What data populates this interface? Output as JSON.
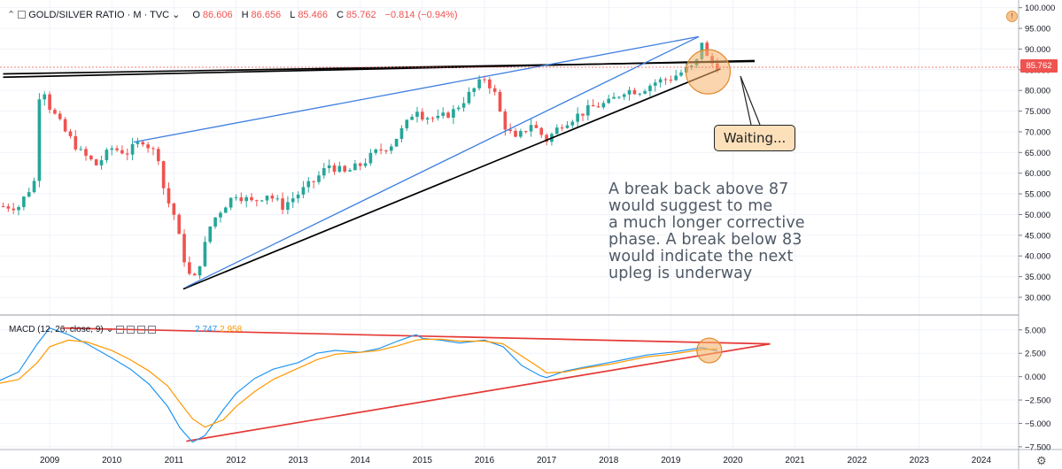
{
  "header": {
    "symbol": "GOLD/SILVER RATIO · M · TVC",
    "dropdown": "⌄",
    "open_label": "O",
    "open": "86.606",
    "high_label": "H",
    "high": "86.656",
    "low_label": "L",
    "low": "85.466",
    "close_label": "C",
    "close": "85.762",
    "change": "−0.814 (−0.94%)"
  },
  "macd_header": {
    "label": "MACD (12, 26, close, 9)",
    "dropdown": "⌄",
    "value_macd": "2.747",
    "value_signal": "2.958"
  },
  "price_tag": "85.762",
  "annotation_note": {
    "lines": [
      "A break back above 87",
      "would suggest to me",
      "a much longer corrective",
      "phase. A break below 83",
      "would indicate the next",
      "upleg is underway"
    ]
  },
  "callout": "Waiting...",
  "info_badge": "!",
  "settings_icon": "gear-icon",
  "colors": {
    "up": "#26a69a",
    "down": "#ef5350",
    "macd": "#2196f3",
    "signal": "#ff9800",
    "trend_blue": "#3d7ee0",
    "trend_black": "#000000",
    "trend_red": "#e53935",
    "highlight": "#f7b26a"
  },
  "chart_data": {
    "type": "line",
    "title": "GOLD/SILVER RATIO · M · TVC",
    "price_axis": {
      "ticks": [
        "100.000",
        "95.000",
        "90.000",
        "85.000",
        "80.000",
        "75.000",
        "70.000",
        "65.000",
        "60.000",
        "55.000",
        "50.000",
        "45.000",
        "40.000",
        "35.000",
        "30.000"
      ],
      "range": [
        27,
        101
      ]
    },
    "macd_axis": {
      "ticks": [
        "5.000",
        "2.500",
        "0.000",
        "−2.500",
        "−5.000",
        "−7.500"
      ],
      "range": [
        -7.7,
        6.4
      ]
    },
    "x_axis": {
      "ticks": [
        "2009",
        "2010",
        "2011",
        "2012",
        "2013",
        "2014",
        "2015",
        "2016",
        "2017",
        "2018",
        "2019",
        "2020",
        "2021",
        "2022",
        "2023",
        "2024"
      ],
      "range": [
        2008.2,
        2024.6
      ]
    },
    "grid": true,
    "legend": "top-left",
    "series": [
      {
        "name": "GOLD/SILVER RATIO",
        "x": [
          2008.25,
          2008.5,
          2008.75,
          2008.85,
          2009.0,
          2009.25,
          2009.5,
          2009.75,
          2010.0,
          2010.25,
          2010.5,
          2010.75,
          2010.85,
          2011.0,
          2011.15,
          2011.3,
          2011.45,
          2011.6,
          2011.8,
          2012.0,
          2012.25,
          2012.5,
          2012.75,
          2013.0,
          2013.25,
          2013.5,
          2013.75,
          2014.0,
          2014.25,
          2014.5,
          2014.75,
          2014.9,
          2015.0,
          2015.25,
          2015.5,
          2015.75,
          2016.0,
          2016.15,
          2016.3,
          2016.5,
          2016.75,
          2017.0,
          2017.25,
          2017.5,
          2017.75,
          2018.0,
          2018.25,
          2018.5,
          2018.75,
          2019.0,
          2019.25,
          2019.4,
          2019.5,
          2019.6,
          2019.75
        ],
        "values": [
          52,
          52,
          58,
          83,
          76,
          70,
          65,
          62,
          66,
          65,
          68,
          64,
          55,
          50,
          40,
          33,
          40,
          48,
          52,
          55,
          53,
          55,
          52,
          55,
          58,
          62,
          60,
          62,
          65,
          67,
          72,
          76,
          74,
          73,
          75,
          79,
          83,
          80,
          72,
          68,
          72,
          68,
          72,
          74,
          76,
          77,
          80,
          80,
          82,
          83,
          85,
          86,
          92,
          87,
          86
        ]
      },
      {
        "name": "MACD",
        "x": [
          2008.2,
          2008.5,
          2008.8,
          2009.0,
          2009.3,
          2009.6,
          2010.0,
          2010.3,
          2010.6,
          2010.9,
          2011.1,
          2011.3,
          2011.5,
          2011.8,
          2012.0,
          2012.3,
          2012.6,
          2013.0,
          2013.3,
          2013.6,
          2014.0,
          2014.3,
          2014.6,
          2014.9,
          2015.0,
          2015.3,
          2015.6,
          2016.0,
          2016.3,
          2016.6,
          2016.9,
          2017.0,
          2017.3,
          2017.6,
          2018.0,
          2018.3,
          2018.6,
          2019.0,
          2019.3,
          2019.5,
          2019.75
        ],
        "values": [
          -0.4,
          0.5,
          3.5,
          5.2,
          4.5,
          3.5,
          2.0,
          0.8,
          -0.8,
          -3.2,
          -5.5,
          -7.0,
          -6.3,
          -3.5,
          -1.8,
          -0.2,
          0.8,
          1.5,
          2.5,
          2.8,
          2.6,
          3.0,
          3.8,
          4.5,
          4.1,
          3.9,
          3.6,
          3.9,
          3.2,
          1.2,
          0.1,
          -0.1,
          0.6,
          1.0,
          1.5,
          1.9,
          2.3,
          2.6,
          2.9,
          3.1,
          2.747
        ]
      },
      {
        "name": "Signal",
        "x": [
          2008.2,
          2008.5,
          2008.8,
          2009.0,
          2009.3,
          2009.6,
          2010.0,
          2010.3,
          2010.6,
          2010.9,
          2011.1,
          2011.3,
          2011.5,
          2011.8,
          2012.0,
          2012.3,
          2012.6,
          2013.0,
          2013.3,
          2013.6,
          2014.0,
          2014.3,
          2014.6,
          2014.9,
          2015.0,
          2015.3,
          2015.6,
          2016.0,
          2016.3,
          2016.6,
          2016.9,
          2017.0,
          2017.3,
          2017.6,
          2018.0,
          2018.3,
          2018.6,
          2019.0,
          2019.3,
          2019.5,
          2019.75
        ],
        "values": [
          -0.7,
          -0.3,
          1.5,
          3.2,
          3.9,
          3.7,
          2.8,
          1.8,
          0.6,
          -1.0,
          -2.8,
          -4.5,
          -5.4,
          -4.6,
          -3.2,
          -1.6,
          -0.3,
          0.9,
          1.8,
          2.4,
          2.6,
          2.8,
          3.3,
          3.9,
          4.0,
          4.0,
          3.8,
          3.8,
          3.5,
          2.2,
          0.9,
          0.4,
          0.5,
          0.9,
          1.3,
          1.7,
          2.1,
          2.4,
          2.7,
          2.9,
          2.958
        ]
      }
    ],
    "trendlines": [
      {
        "name": "black-upper",
        "color": "#000000",
        "x": [
          2008.25,
          2020.35
        ],
        "y": [
          83.2,
          87.2
        ]
      },
      {
        "name": "black-upper-2",
        "color": "#000000",
        "x": [
          2008.25,
          2020.35
        ],
        "y": [
          84.0,
          87.0
        ]
      },
      {
        "name": "black-lower",
        "color": "#000000",
        "x": [
          2011.15,
          2019.8
        ],
        "y": [
          32.0,
          85.2
        ]
      },
      {
        "name": "blue-upper",
        "color": "#3d7ee0",
        "x": [
          2010.35,
          2019.45
        ],
        "y": [
          67.5,
          93.0
        ]
      },
      {
        "name": "blue-lower",
        "color": "#3d7ee0",
        "x": [
          2011.2,
          2019.45
        ],
        "y": [
          32.5,
          93.0
        ]
      },
      {
        "name": "macd-red-upper",
        "color": "#e53935",
        "x": [
          2009.2,
          2020.6
        ],
        "y": [
          5.2,
          3.5
        ]
      },
      {
        "name": "macd-red-lower",
        "color": "#e53935",
        "x": [
          2011.2,
          2020.6
        ],
        "y": [
          -6.9,
          3.5
        ]
      }
    ]
  }
}
